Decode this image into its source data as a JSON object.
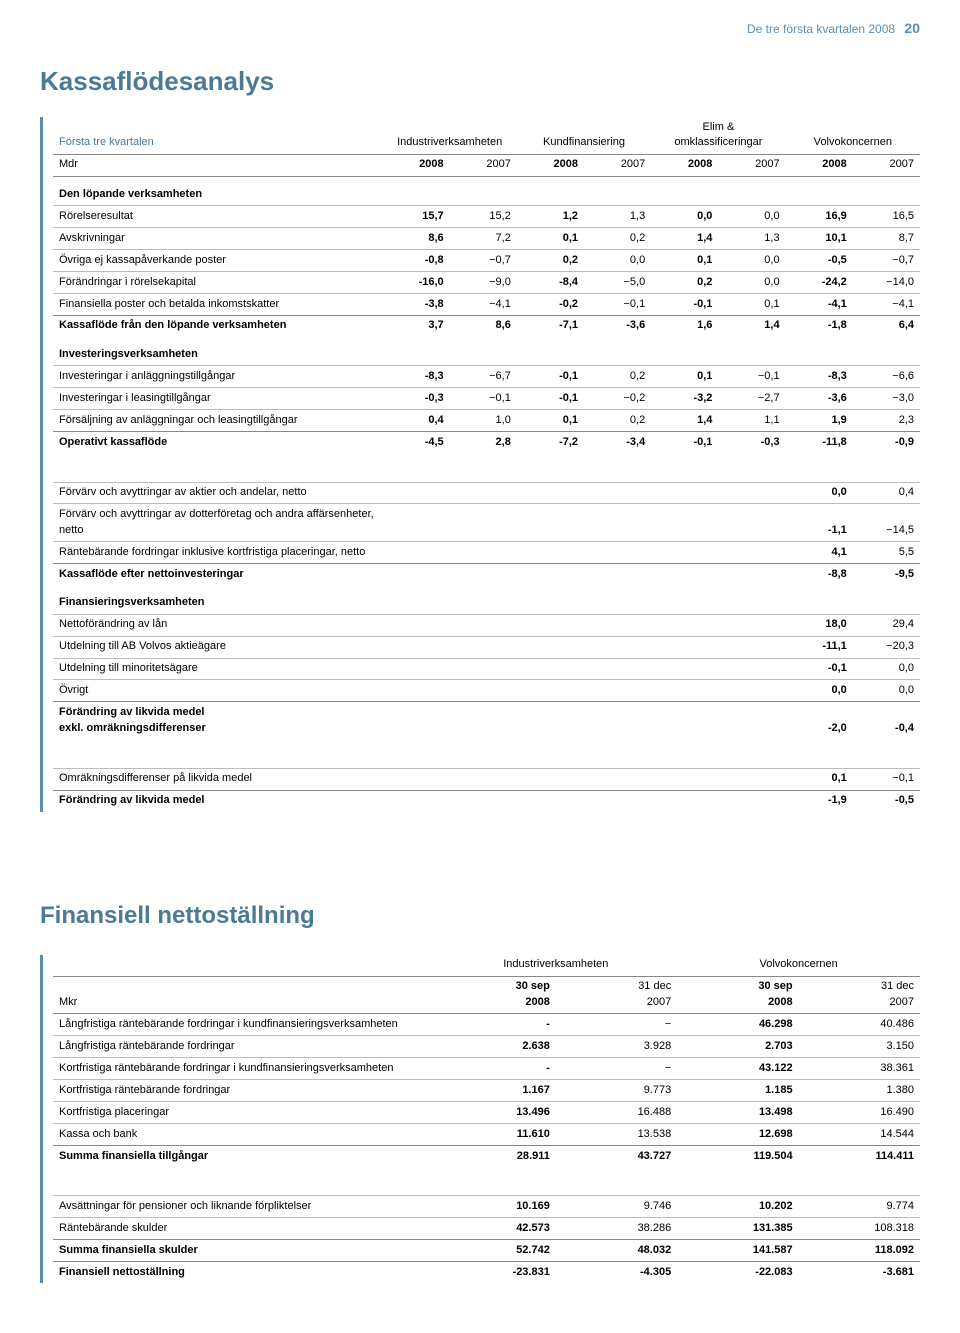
{
  "colors": {
    "accent": "#5a8fb0",
    "heading": "#4b7a96",
    "rule": "#888888",
    "rule_light": "#bbbbbb",
    "text": "#000000",
    "background": "#ffffff"
  },
  "typography": {
    "heading_fontsize_pt": 20,
    "body_fontsize_pt": 8,
    "font_family": "Arial"
  },
  "header": {
    "text": "De tre första kvartalen 2008",
    "page_number": "20"
  },
  "table1": {
    "title": "Kassaflödesanalys",
    "type": "table",
    "subtitle": "Första tre kvartalen",
    "unit_label": "Mdr",
    "column_groups": [
      "Industriverksamheten",
      "Kundfinansiering",
      "Elim & omklassificeringar",
      "Volvokoncernen"
    ],
    "years": [
      "2008",
      "2007",
      "2008",
      "2007",
      "2008",
      "2007",
      "2008",
      "2007"
    ],
    "sections": [
      {
        "header": "Den löpande verksamheten",
        "rows": [
          {
            "label": "Rörelseresultat",
            "v": [
              "15,7",
              "15,2",
              "1,2",
              "1,3",
              "0,0",
              "0,0",
              "16,9",
              "16,5"
            ]
          },
          {
            "label": "Avskrivningar",
            "v": [
              "8,6",
              "7,2",
              "0,1",
              "0,2",
              "1,4",
              "1,3",
              "10,1",
              "8,7"
            ]
          },
          {
            "label": "Övriga ej kassapåverkande poster",
            "v": [
              "-0,8",
              "−0,7",
              "0,2",
              "0,0",
              "0,1",
              "0,0",
              "-0,5",
              "−0,7"
            ]
          },
          {
            "label": "Förändringar i rörelsekapital",
            "v": [
              "-16,0",
              "−9,0",
              "-8,4",
              "−5,0",
              "0,2",
              "0,0",
              "-24,2",
              "−14,0"
            ]
          },
          {
            "label": "Finansiella poster och betalda inkomstskatter",
            "v": [
              "-3,8",
              "−4,1",
              "-0,2",
              "−0,1",
              "-0,1",
              "0,1",
              "-4,1",
              "−4,1"
            ]
          }
        ],
        "total": {
          "label": "Kassaflöde från den löpande verksamheten",
          "v": [
            "3,7",
            "8,6",
            "-7,1",
            "-3,6",
            "1,6",
            "1,4",
            "-1,8",
            "6,4"
          ]
        }
      },
      {
        "header": "Investeringsverksamheten",
        "rows": [
          {
            "label": "Investeringar i anläggningstillgångar",
            "v": [
              "-8,3",
              "−6,7",
              "-0,1",
              "0,2",
              "0,1",
              "−0,1",
              "-8,3",
              "−6,6"
            ]
          },
          {
            "label": "Investeringar i leasingtillgångar",
            "v": [
              "-0,3",
              "−0,1",
              "-0,1",
              "−0,2",
              "-3,2",
              "−2,7",
              "-3,6",
              "−3,0"
            ]
          },
          {
            "label": "Försäljning av anläggningar och leasingtillgångar",
            "v": [
              "0,4",
              "1,0",
              "0,1",
              "0,2",
              "1,4",
              "1,1",
              "1,9",
              "2,3"
            ]
          }
        ],
        "total": {
          "label": "Operativt kassaflöde",
          "v": [
            "-4,5",
            "2,8",
            "-7,2",
            "-3,4",
            "-0,1",
            "-0,3",
            "-11,8",
            "-0,9"
          ]
        }
      },
      {
        "rows": [
          {
            "label": "Förvärv och avyttringar av aktier och andelar, netto",
            "v": [
              "",
              "",
              "",
              "",
              "",
              "",
              "0,0",
              "0,4"
            ]
          },
          {
            "label": "Förvärv och avyttringar av dotterföretag och andra affärsenheter, netto",
            "v": [
              "",
              "",
              "",
              "",
              "",
              "",
              "-1,1",
              "−14,5"
            ]
          },
          {
            "label": "Räntebärande fordringar inklusive kortfristiga placeringar, netto",
            "v": [
              "",
              "",
              "",
              "",
              "",
              "",
              "4,1",
              "5,5"
            ]
          }
        ],
        "total": {
          "label": "Kassaflöde efter nettoinvesteringar",
          "v": [
            "",
            "",
            "",
            "",
            "",
            "",
            "-8,8",
            "-9,5"
          ]
        }
      },
      {
        "header": "Finansieringsverksamheten",
        "rows": [
          {
            "label": "Nettoförändring av lån",
            "v": [
              "",
              "",
              "",
              "",
              "",
              "",
              "18,0",
              "29,4"
            ]
          },
          {
            "label": "Utdelning till AB Volvos aktieägare",
            "v": [
              "",
              "",
              "",
              "",
              "",
              "",
              "-11,1",
              "−20,3"
            ]
          },
          {
            "label": "Utdelning till minoritetsägare",
            "v": [
              "",
              "",
              "",
              "",
              "",
              "",
              "-0,1",
              "0,0"
            ]
          },
          {
            "label": "Övrigt",
            "v": [
              "",
              "",
              "",
              "",
              "",
              "",
              "0,0",
              "0,0"
            ]
          }
        ],
        "total": {
          "label": "Förändring av likvida medel\nexkl. omräkningsdifferenser",
          "v": [
            "",
            "",
            "",
            "",
            "",
            "",
            "-2,0",
            "-0,4"
          ]
        }
      },
      {
        "rows": [
          {
            "label": "Omräkningsdifferenser på likvida medel",
            "v": [
              "",
              "",
              "",
              "",
              "",
              "",
              "0,1",
              "−0,1"
            ]
          }
        ],
        "total": {
          "label": "Förändring av likvida medel",
          "v": [
            "",
            "",
            "",
            "",
            "",
            "",
            "-1,9",
            "-0,5"
          ]
        }
      }
    ]
  },
  "table2": {
    "title": "Finansiell nettoställning",
    "type": "table",
    "unit_label": "Mkr",
    "column_groups": [
      "Industriverksamheten",
      "Volvokoncernen"
    ],
    "headers": [
      "30 sep\n2008",
      "31 dec\n2007",
      "30 sep\n2008",
      "31 dec\n2007"
    ],
    "sections": [
      {
        "rows": [
          {
            "label": "Långfristiga räntebärande fordringar i kundfinansieringsverksamheten",
            "v": [
              "-",
              "−",
              "46.298",
              "40.486"
            ]
          },
          {
            "label": "Långfristiga räntebärande fordringar",
            "v": [
              "2.638",
              "3.928",
              "2.703",
              "3.150"
            ]
          },
          {
            "label": "Kortfristiga räntebärande fordringar i kundfinansieringsverksamheten",
            "v": [
              "-",
              "−",
              "43.122",
              "38.361"
            ]
          },
          {
            "label": "Kortfristiga räntebärande fordringar",
            "v": [
              "1.167",
              "9.773",
              "1.185",
              "1.380"
            ]
          },
          {
            "label": "Kortfristiga placeringar",
            "v": [
              "13.496",
              "16.488",
              "13.498",
              "16.490"
            ]
          },
          {
            "label": "Kassa och bank",
            "v": [
              "11.610",
              "13.538",
              "12.698",
              "14.544"
            ]
          }
        ],
        "total": {
          "label": "Summa finansiella tillgångar",
          "v": [
            "28.911",
            "43.727",
            "119.504",
            "114.411"
          ]
        }
      },
      {
        "rows": [
          {
            "label": "Avsättningar för pensioner och liknande förpliktelser",
            "v": [
              "10.169",
              "9.746",
              "10.202",
              "9.774"
            ]
          },
          {
            "label": "Räntebärande skulder",
            "v": [
              "42.573",
              "38.286",
              "131.385",
              "108.318"
            ]
          }
        ],
        "total": {
          "label": "Summa finansiella skulder",
          "v": [
            "52.742",
            "48.032",
            "141.587",
            "118.092"
          ]
        },
        "final": {
          "label": "Finansiell nettoställning",
          "v": [
            "-23.831",
            "-4.305",
            "-22.083",
            "-3.681"
          ]
        }
      }
    ]
  }
}
